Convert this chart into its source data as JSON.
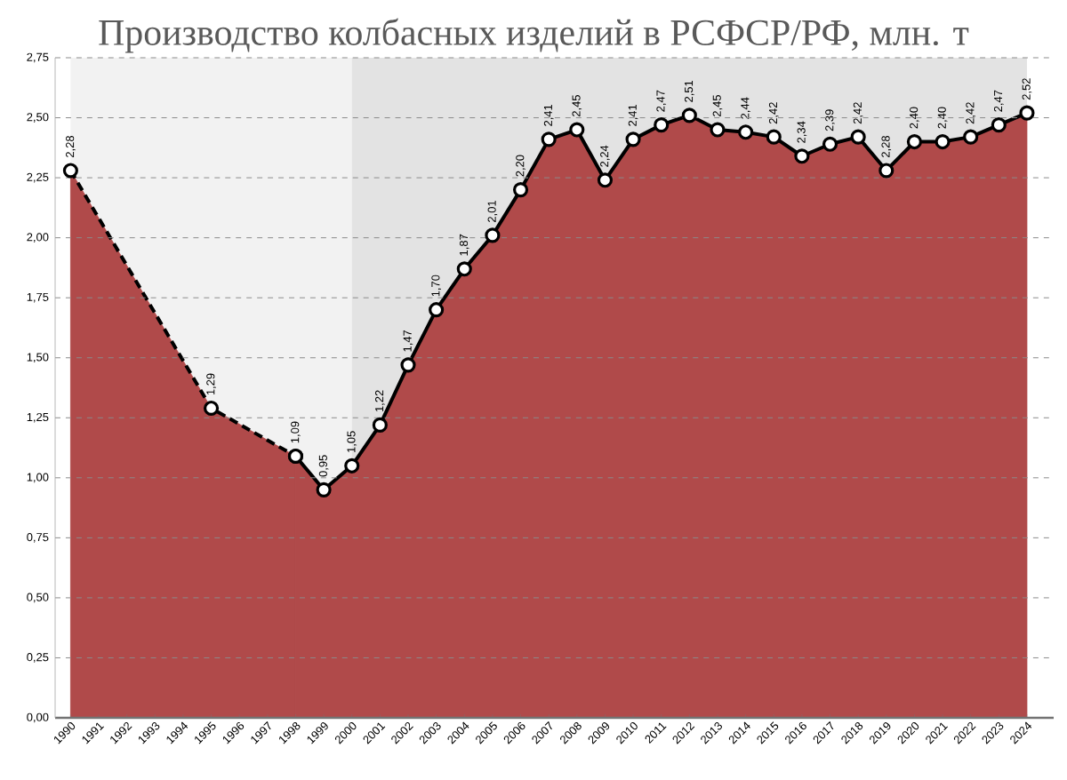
{
  "chart_data": {
    "type": "area",
    "title": "Производство колбасных изделий в РСФСР/РФ, млн. т",
    "categories": [
      "1990",
      "1991",
      "1992",
      "1993",
      "1994",
      "1995",
      "1996",
      "1997",
      "1998",
      "1999",
      "2000",
      "2001",
      "2002",
      "2003",
      "2004",
      "2005",
      "2006",
      "2007",
      "2008",
      "2009",
      "2010",
      "2011",
      "2012",
      "2013",
      "2014",
      "2015",
      "2016",
      "2017",
      "2018",
      "2019",
      "2020",
      "2021",
      "2022",
      "2023",
      "2024"
    ],
    "series": [
      {
        "color": "#b04a4a",
        "line_style": "dashed",
        "marker": "circle",
        "values": [
          2.28,
          null,
          null,
          null,
          null,
          1.29,
          null,
          null,
          1.09,
          null,
          null,
          null,
          null,
          null,
          null,
          null,
          null,
          null,
          null,
          null,
          null,
          null,
          null,
          null,
          null,
          null,
          null,
          null,
          null,
          null,
          null,
          null,
          null,
          null,
          null
        ],
        "value_labels": [
          "2,28",
          null,
          null,
          null,
          null,
          "1,29",
          null,
          null,
          null,
          null,
          null,
          null,
          null,
          null,
          null,
          null,
          null,
          null,
          null,
          null,
          null,
          null,
          null,
          null,
          null,
          null,
          null,
          null,
          null,
          null,
          null,
          null,
          null,
          null,
          null
        ]
      },
      {
        "color": "#b04a4a",
        "line_style": "solid",
        "marker": "circle",
        "values": [
          null,
          null,
          null,
          null,
          null,
          null,
          null,
          null,
          1.09,
          0.95,
          1.05,
          1.22,
          1.47,
          1.7,
          1.87,
          2.01,
          2.2,
          2.41,
          2.45,
          2.24,
          2.41,
          2.47,
          2.51,
          2.45,
          2.44,
          2.42,
          2.34,
          2.39,
          2.42,
          2.28,
          2.4,
          2.4,
          2.42,
          2.47,
          2.52
        ],
        "value_labels": [
          null,
          null,
          null,
          null,
          null,
          null,
          null,
          null,
          "1,09",
          "0,95",
          "1,05",
          "1,22",
          "1,47",
          "1,70",
          "1,87",
          "2,01",
          "2,20",
          "2,41",
          "2,45",
          "2,24",
          "2,41",
          "2,47",
          "2,51",
          "2,45",
          "2,44",
          "2,42",
          "2,34",
          "2,39",
          "2,42",
          "2,28",
          "2,40",
          "2,40",
          "2,42",
          "2,47",
          "2,52"
        ]
      }
    ],
    "ylim": [
      0,
      2.75
    ],
    "yticks": [
      {
        "value": 0,
        "label": "0,00"
      },
      {
        "value": 0.25,
        "label": "0,25"
      },
      {
        "value": 0.5,
        "label": "0,50"
      },
      {
        "value": 0.75,
        "label": "0,75"
      },
      {
        "value": 1,
        "label": "1,00"
      },
      {
        "value": 1.25,
        "label": "1,25"
      },
      {
        "value": 1.5,
        "label": "1,50"
      },
      {
        "value": 1.75,
        "label": "1,75"
      },
      {
        "value": 2,
        "label": "2,00"
      },
      {
        "value": 2.25,
        "label": "2,25"
      },
      {
        "value": 2.5,
        "label": "2,50"
      },
      {
        "value": 2.75,
        "label": "2,75"
      }
    ],
    "grid": "y",
    "bands": [
      {
        "axis": "x",
        "from": "1990",
        "to": "2000",
        "color": "#f2f2f2"
      },
      {
        "axis": "x",
        "from": "2000",
        "to": "2024",
        "color": "#e3e3e3"
      }
    ]
  }
}
